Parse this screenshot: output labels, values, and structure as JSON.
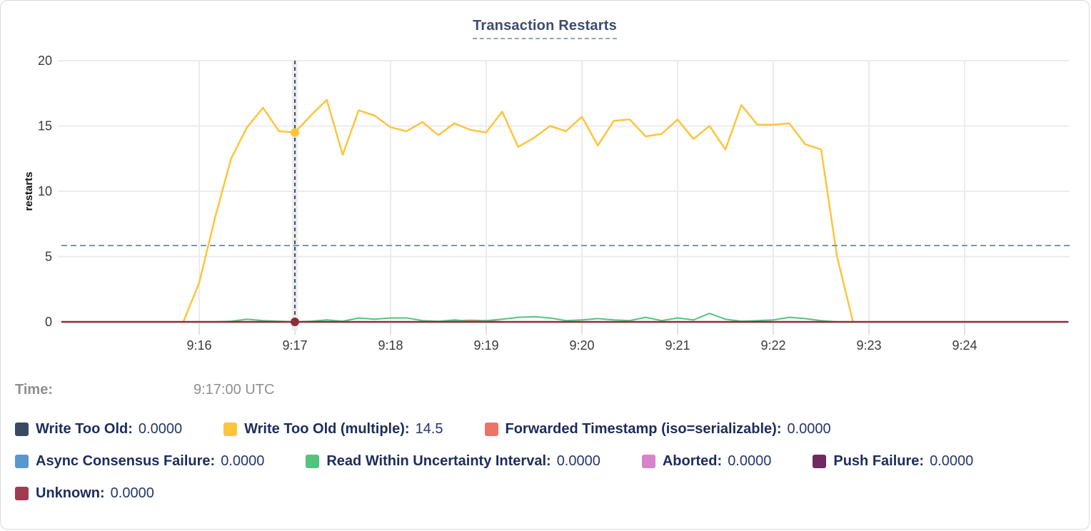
{
  "title": "Transaction Restarts",
  "tooltip": {
    "time_label": "Time:",
    "time_value": "9:17:00 UTC"
  },
  "legend": {
    "items": [
      {
        "label": "Write Too Old:",
        "value": "0.0000"
      },
      {
        "label": "Write Too Old (multiple):",
        "value": "14.5"
      },
      {
        "label": "Forwarded Timestamp (iso=serializable):",
        "value": "0.0000"
      },
      {
        "label": "Async Consensus Failure:",
        "value": "0.0000"
      },
      {
        "label": "Read Within Uncertainty Interval:",
        "value": "0.0000"
      },
      {
        "label": "Aborted:",
        "value": "0.0000"
      },
      {
        "label": "Push Failure:",
        "value": "0.0000"
      },
      {
        "label": "Unknown:",
        "value": "0.0000"
      }
    ]
  },
  "chart_data": {
    "type": "line",
    "title": "Transaction Restarts",
    "ylabel": "restarts",
    "ylim": [
      0,
      20
    ],
    "y_ticks": [
      0,
      5,
      10,
      15,
      20
    ],
    "x_ticks": [
      "9:16",
      "9:17",
      "9:18",
      "9:19",
      "9:20",
      "9:21",
      "9:22",
      "9:23",
      "9:24"
    ],
    "grid": true,
    "reference_line_y": 5.85,
    "crosshair": {
      "time": "9:17:00",
      "points": [
        {
          "series": "Write Too Old (multiple)",
          "value": 14.5,
          "color": "#fdc53a"
        },
        {
          "series": "Unknown",
          "value": 0,
          "color": "#8e2c3c"
        }
      ]
    },
    "colors": {
      "grid": "#ececec",
      "axis_text": "#3a3a3a",
      "reference_line": "#7f95ab",
      "crosshair_line": "#3e4f66",
      "hover_band": "#ececec"
    },
    "series": [
      {
        "name": "Write Too Old",
        "color": "#394a61",
        "points": [
          [
            "9:14:30",
            0
          ],
          [
            "9:25:05",
            0
          ]
        ]
      },
      {
        "name": "Write Too Old (multiple)",
        "color": "#fdc53a",
        "points": [
          [
            "9:15:50",
            0
          ],
          [
            "9:16:00",
            3
          ],
          [
            "9:16:10",
            8
          ],
          [
            "9:16:20",
            12.5
          ],
          [
            "9:16:30",
            14.9
          ],
          [
            "9:16:40",
            16.4
          ],
          [
            "9:16:50",
            14.6
          ],
          [
            "9:17:00",
            14.5
          ],
          [
            "9:17:10",
            15.8
          ],
          [
            "9:17:20",
            17.0
          ],
          [
            "9:17:30",
            12.8
          ],
          [
            "9:17:40",
            16.2
          ],
          [
            "9:17:50",
            15.8
          ],
          [
            "9:18:00",
            14.9
          ],
          [
            "9:18:10",
            14.6
          ],
          [
            "9:18:20",
            15.3
          ],
          [
            "9:18:30",
            14.3
          ],
          [
            "9:18:40",
            15.2
          ],
          [
            "9:18:50",
            14.7
          ],
          [
            "9:19:00",
            14.5
          ],
          [
            "9:19:10",
            16.1
          ],
          [
            "9:19:20",
            13.4
          ],
          [
            "9:19:30",
            14.1
          ],
          [
            "9:19:40",
            15.0
          ],
          [
            "9:19:50",
            14.6
          ],
          [
            "9:20:00",
            15.7
          ],
          [
            "9:20:10",
            13.5
          ],
          [
            "9:20:20",
            15.4
          ],
          [
            "9:20:30",
            15.5
          ],
          [
            "9:20:40",
            14.2
          ],
          [
            "9:20:50",
            14.4
          ],
          [
            "9:21:00",
            15.5
          ],
          [
            "9:21:10",
            14.0
          ],
          [
            "9:21:20",
            15.0
          ],
          [
            "9:21:30",
            13.2
          ],
          [
            "9:21:40",
            16.6
          ],
          [
            "9:21:50",
            15.1
          ],
          [
            "9:22:00",
            15.1
          ],
          [
            "9:22:10",
            15.2
          ],
          [
            "9:22:20",
            13.6
          ],
          [
            "9:22:30",
            13.2
          ],
          [
            "9:22:40",
            5.0
          ],
          [
            "9:22:50",
            0
          ]
        ]
      },
      {
        "name": "Forwarded Timestamp (iso=serializable)",
        "color": "#ed7366",
        "points": [
          [
            "9:14:30",
            0
          ],
          [
            "9:18:30",
            0
          ],
          [
            "9:18:40",
            0.08
          ],
          [
            "9:18:50",
            0.12
          ],
          [
            "9:19:00",
            0.1
          ],
          [
            "9:19:10",
            0
          ],
          [
            "9:25:05",
            0
          ]
        ]
      },
      {
        "name": "Async Consensus Failure",
        "color": "#5a97cf",
        "points": [
          [
            "9:14:30",
            0
          ],
          [
            "9:25:05",
            0
          ]
        ]
      },
      {
        "name": "Read Within Uncertainty Interval",
        "color": "#53c47e",
        "points": [
          [
            "9:14:30",
            0
          ],
          [
            "9:16:10",
            0
          ],
          [
            "9:16:20",
            0.05
          ],
          [
            "9:16:30",
            0.2
          ],
          [
            "9:16:40",
            0.1
          ],
          [
            "9:16:50",
            0.05
          ],
          [
            "9:17:00",
            0
          ],
          [
            "9:17:10",
            0.05
          ],
          [
            "9:17:20",
            0.15
          ],
          [
            "9:17:30",
            0.05
          ],
          [
            "9:17:40",
            0.3
          ],
          [
            "9:17:50",
            0.2
          ],
          [
            "9:18:00",
            0.3
          ],
          [
            "9:18:10",
            0.3
          ],
          [
            "9:18:20",
            0.1
          ],
          [
            "9:18:30",
            0.05
          ],
          [
            "9:18:40",
            0.15
          ],
          [
            "9:18:50",
            0.05
          ],
          [
            "9:19:00",
            0.1
          ],
          [
            "9:19:10",
            0.2
          ],
          [
            "9:19:20",
            0.35
          ],
          [
            "9:19:30",
            0.4
          ],
          [
            "9:19:40",
            0.3
          ],
          [
            "9:19:50",
            0.1
          ],
          [
            "9:20:00",
            0.15
          ],
          [
            "9:20:10",
            0.25
          ],
          [
            "9:20:20",
            0.15
          ],
          [
            "9:20:30",
            0.1
          ],
          [
            "9:20:40",
            0.35
          ],
          [
            "9:20:50",
            0.1
          ],
          [
            "9:21:00",
            0.3
          ],
          [
            "9:21:10",
            0.15
          ],
          [
            "9:21:20",
            0.65
          ],
          [
            "9:21:30",
            0.2
          ],
          [
            "9:21:40",
            0.05
          ],
          [
            "9:21:50",
            0.1
          ],
          [
            "9:22:00",
            0.15
          ],
          [
            "9:22:10",
            0.35
          ],
          [
            "9:22:20",
            0.25
          ],
          [
            "9:22:30",
            0.1
          ],
          [
            "9:22:40",
            0
          ],
          [
            "9:25:05",
            0
          ]
        ]
      },
      {
        "name": "Aborted",
        "color": "#d783cb",
        "points": [
          [
            "9:14:30",
            0
          ],
          [
            "9:25:05",
            0
          ]
        ]
      },
      {
        "name": "Push Failure",
        "color": "#6f2b5f",
        "points": [
          [
            "9:14:30",
            0
          ],
          [
            "9:25:05",
            0
          ]
        ]
      },
      {
        "name": "Unknown",
        "color": "#a03c52",
        "stroke": "#8e2c3c",
        "points": [
          [
            "9:14:30",
            0
          ],
          [
            "9:25:05",
            0
          ]
        ]
      }
    ]
  }
}
